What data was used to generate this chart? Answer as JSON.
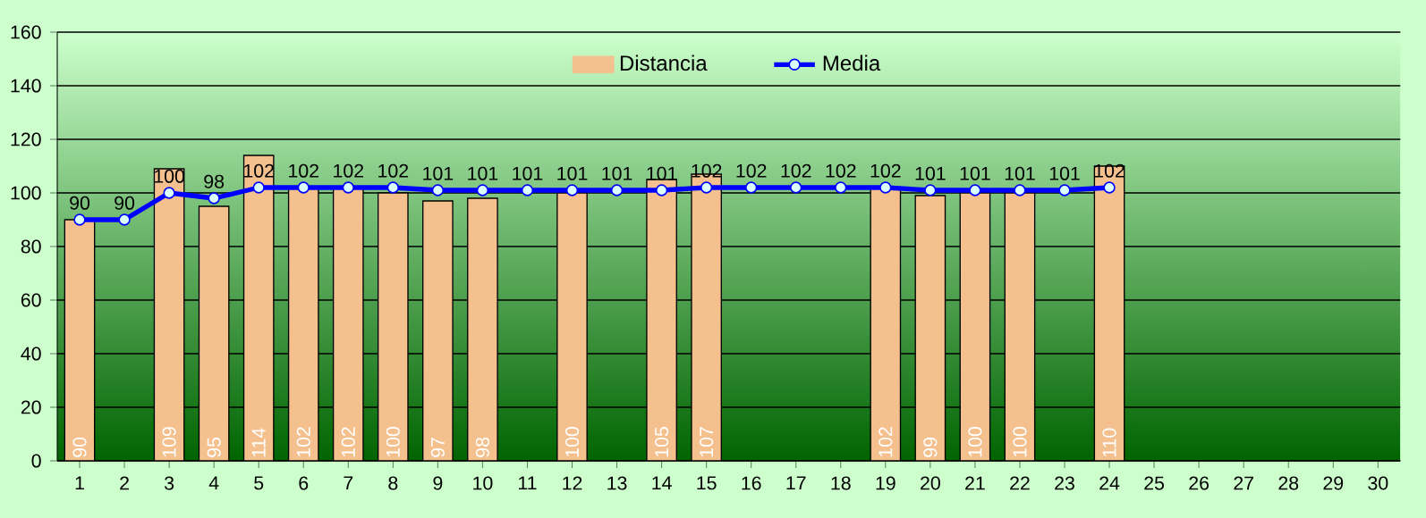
{
  "chart_data": {
    "type": "bar",
    "categories": [
      "1",
      "2",
      "3",
      "4",
      "5",
      "6",
      "7",
      "8",
      "9",
      "10",
      "11",
      "12",
      "13",
      "14",
      "15",
      "16",
      "17",
      "18",
      "19",
      "20",
      "21",
      "22",
      "23",
      "24",
      "25",
      "26",
      "27",
      "28",
      "29",
      "30"
    ],
    "series": [
      {
        "name": "Distancia",
        "color": "#f4c08e",
        "values": [
          90,
          null,
          109,
          95,
          114,
          102,
          102,
          100,
          97,
          98,
          null,
          100,
          null,
          105,
          107,
          null,
          null,
          null,
          102,
          99,
          100,
          100,
          null,
          110,
          null,
          null,
          null,
          null,
          null,
          null
        ],
        "value_labels": [
          "90",
          null,
          "109",
          "95",
          "114",
          "102",
          "102",
          "100",
          "97",
          "98",
          null,
          "100",
          null,
          "105",
          "107",
          null,
          null,
          null,
          "102",
          "99",
          "100",
          "100",
          null,
          "110",
          null,
          null,
          null,
          null,
          null,
          null
        ]
      },
      {
        "name": "Media",
        "type": "line",
        "color": "#0000ff",
        "marker": "circle",
        "values": [
          90,
          90,
          100,
          98,
          102,
          102,
          102,
          102,
          101,
          101,
          101,
          101,
          101,
          101,
          102,
          102,
          102,
          102,
          102,
          101,
          101,
          101,
          101,
          102,
          null,
          null,
          null,
          null,
          null,
          null
        ],
        "value_labels": [
          "90",
          "90",
          "100",
          "98",
          "102",
          "102",
          "102",
          "102",
          "101",
          "101",
          "101",
          "101",
          "101",
          "101",
          "102",
          "102",
          "102",
          "102",
          "102",
          "101",
          "101",
          "101",
          "101",
          "102",
          null,
          null,
          null,
          null,
          null,
          null
        ]
      }
    ],
    "ylim": [
      0,
      160
    ],
    "yticks": [
      0,
      20,
      40,
      60,
      80,
      100,
      120,
      140,
      160
    ],
    "grid": "y",
    "legend": "top"
  }
}
